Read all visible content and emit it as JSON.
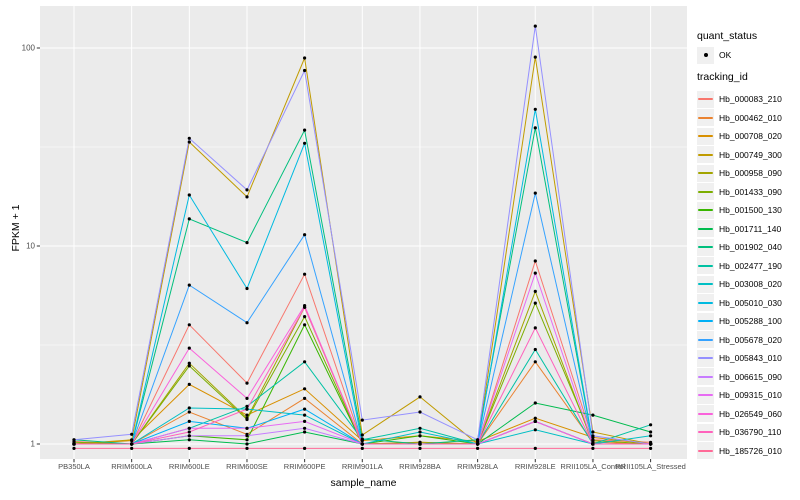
{
  "legend": {
    "quant_status_title": "quant_status",
    "quant_status_value": "OK",
    "tracking_id_title": "tracking_id"
  },
  "chart_data": {
    "type": "line",
    "title": "",
    "xlabel": "sample_name",
    "ylabel": "FPKM + 1",
    "y_scale": "log10",
    "yticks": [
      1,
      10,
      100
    ],
    "ylim": [
      0.85,
      160
    ],
    "grid": true,
    "legend_position": "right",
    "panel_bg": "#EBEBEB",
    "grid_color": "#FFFFFF",
    "point_color": "#000000",
    "tick_label_color": "#4D4D4D",
    "x": [
      "PB350LA",
      "RRIM600LA",
      "RRIM600LE",
      "RRIM600SE",
      "RRIM600PE",
      "RRIM901LA",
      "RRIM928BA",
      "RRIM928LA",
      "RRIM928LE",
      "RRII105LA_Control",
      "RRII105LA_Stressed"
    ],
    "series": [
      {
        "name": "Hb_000083_210",
        "color": "#F8766D",
        "values": [
          1.03,
          1.0,
          4.0,
          2.03,
          7.2,
          1.0,
          1.02,
          1.0,
          8.4,
          1.05,
          1.02
        ]
      },
      {
        "name": "Hb_000462_010",
        "color": "#EA8331",
        "values": [
          1.0,
          1.0,
          1.45,
          1.12,
          1.7,
          1.0,
          1.0,
          1.0,
          2.6,
          1.02,
          1.0
        ]
      },
      {
        "name": "Hb_000708_020",
        "color": "#D89000",
        "values": [
          1.0,
          1.04,
          2.0,
          1.4,
          1.9,
          1.04,
          1.1,
          1.03,
          1.35,
          1.08,
          1.0
        ]
      },
      {
        "name": "Hb_000749_300",
        "color": "#C09B00",
        "values": [
          1.0,
          1.05,
          33.5,
          17.7,
          89.0,
          1.11,
          1.73,
          1.0,
          90.0,
          1.15,
          1.0
        ]
      },
      {
        "name": "Hb_000958_090",
        "color": "#A3A500",
        "values": [
          1.0,
          1.0,
          2.56,
          1.35,
          4.9,
          1.0,
          1.02,
          1.0,
          5.9,
          1.0,
          1.0
        ]
      },
      {
        "name": "Hb_001433_090",
        "color": "#7CAE00",
        "values": [
          1.02,
          1.0,
          2.48,
          1.33,
          4.4,
          1.0,
          1.0,
          1.0,
          5.15,
          1.04,
          1.0
        ]
      },
      {
        "name": "Hb_001500_130",
        "color": "#39B600",
        "values": [
          1.0,
          1.0,
          1.1,
          1.05,
          4.0,
          1.0,
          1.1,
          1.0,
          1.3,
          1.0,
          1.0
        ]
      },
      {
        "name": "Hb_001711_140",
        "color": "#00BB4E",
        "values": [
          1.0,
          1.0,
          1.05,
          1.0,
          1.15,
          1.0,
          1.0,
          1.0,
          1.61,
          1.4,
          1.15
        ]
      },
      {
        "name": "Hb_001902_040",
        "color": "#00BF7D",
        "values": [
          1.05,
          1.0,
          13.7,
          10.4,
          38.5,
          1.06,
          1.0,
          1.05,
          39.5,
          1.0,
          1.0
        ]
      },
      {
        "name": "Hb_002477_190",
        "color": "#00C1A3",
        "values": [
          1.0,
          1.0,
          1.2,
          1.55,
          2.6,
          1.05,
          1.2,
          1.0,
          3.0,
          1.0,
          1.25
        ]
      },
      {
        "name": "Hb_003008_020",
        "color": "#00BFC4",
        "values": [
          1.0,
          1.0,
          1.52,
          1.5,
          1.4,
          1.0,
          1.15,
          1.0,
          1.18,
          1.0,
          1.1
        ]
      },
      {
        "name": "Hb_005010_030",
        "color": "#00BAE0",
        "values": [
          1.0,
          1.0,
          18.1,
          6.1,
          33.0,
          1.0,
          1.0,
          1.0,
          49.0,
          1.0,
          1.0
        ]
      },
      {
        "name": "Hb_005288_100",
        "color": "#00B0F6",
        "values": [
          1.0,
          1.0,
          1.3,
          1.2,
          1.5,
          1.0,
          1.0,
          1.0,
          1.3,
          1.0,
          1.0
        ]
      },
      {
        "name": "Hb_005678_020",
        "color": "#35A2FF",
        "values": [
          1.0,
          1.0,
          6.35,
          4.1,
          11.4,
          1.0,
          1.0,
          1.0,
          18.5,
          1.0,
          1.0
        ]
      },
      {
        "name": "Hb_005843_010",
        "color": "#9590FF",
        "values": [
          1.05,
          1.12,
          35.0,
          19.2,
          77.0,
          1.32,
          1.45,
          1.05,
          129.0,
          1.1,
          1.0
        ]
      },
      {
        "name": "Hb_006615_090",
        "color": "#C77CFF",
        "values": [
          1.0,
          1.0,
          1.1,
          1.1,
          1.2,
          1.0,
          1.0,
          1.0,
          1.3,
          1.0,
          1.0
        ]
      },
      {
        "name": "Hb_009315_010",
        "color": "#E76BF3",
        "values": [
          1.0,
          1.0,
          1.2,
          1.2,
          1.3,
          1.0,
          1.0,
          1.0,
          7.3,
          1.0,
          1.0
        ]
      },
      {
        "name": "Hb_026549_060",
        "color": "#FA62DB",
        "values": [
          1.0,
          1.0,
          3.05,
          1.7,
          5.0,
          1.0,
          1.0,
          1.0,
          1.3,
          1.0,
          1.0
        ]
      },
      {
        "name": "Hb_036790_110",
        "color": "#FF62BC",
        "values": [
          1.0,
          1.0,
          1.15,
          1.5,
          4.9,
          1.0,
          1.0,
          1.0,
          3.86,
          1.0,
          1.0
        ]
      },
      {
        "name": "Hb_185726_010",
        "color": "#FF6A98",
        "values": [
          0.95,
          0.95,
          0.95,
          0.95,
          0.95,
          0.95,
          0.95,
          0.95,
          0.95,
          0.95,
          0.95
        ]
      }
    ]
  }
}
